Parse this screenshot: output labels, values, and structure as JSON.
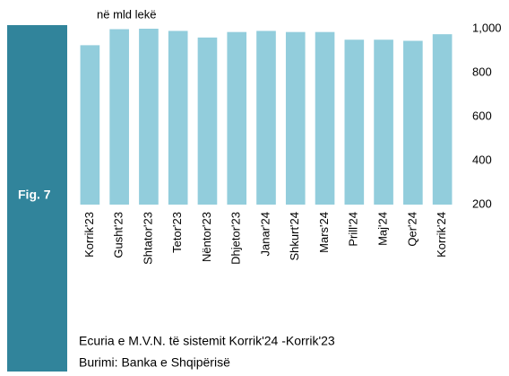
{
  "chart_data": {
    "type": "bar",
    "figure_label": "Fig. 7",
    "unit_label": "në mld lekë",
    "caption": "Ecuria e M.V.N. të sistemit Korrik'24 -Korrik'23",
    "source": "Burimi: Banka e Shqipërisë",
    "categories": [
      "Korrik'23",
      "Gusht'23",
      "Shtator'23",
      "Tetor'23",
      "Nëntor'23",
      "Dhjetor'23",
      "Janar'24",
      "Shkurt'24",
      "Mars'24",
      "Prill'24",
      "Maj'24",
      "Qer'24",
      "Korrik'24"
    ],
    "values": [
      925,
      998,
      1000,
      990,
      960,
      985,
      990,
      985,
      985,
      950,
      950,
      945,
      975
    ],
    "color": "#92cddc",
    "ylim": [
      200,
      1000
    ],
    "yticks": [
      200,
      400,
      600,
      800,
      {
        "value": 1000,
        "label": "1,000"
      }
    ],
    "grid": false
  }
}
